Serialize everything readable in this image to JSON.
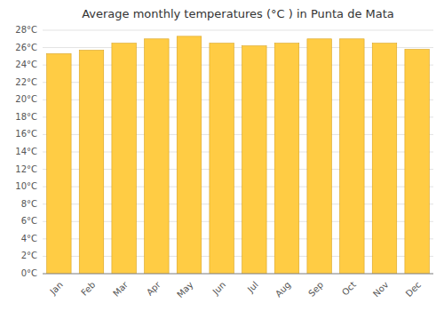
{
  "chart_data": {
    "type": "bar",
    "title": "Average monthly temperatures (°C ) in Punta de Mata",
    "categories": [
      "Jan",
      "Feb",
      "Mar",
      "Apr",
      "May",
      "Jun",
      "Jul",
      "Aug",
      "Sep",
      "Oct",
      "Nov",
      "Dec"
    ],
    "values": [
      25.3,
      25.7,
      26.5,
      27.0,
      27.3,
      26.5,
      26.2,
      26.5,
      27.0,
      27.0,
      26.5,
      25.8
    ],
    "color": "#FFCC44",
    "ylim": [
      0,
      28
    ],
    "yticks": [
      {
        "value": 0,
        "label": "0°C"
      },
      {
        "value": 2,
        "label": "2°C"
      },
      {
        "value": 4,
        "label": "4°C"
      },
      {
        "value": 6,
        "label": "6°C"
      },
      {
        "value": 8,
        "label": "8°C"
      },
      {
        "value": 10,
        "label": "10°C"
      },
      {
        "value": 12,
        "label": "12°C"
      },
      {
        "value": 14,
        "label": "14°C"
      },
      {
        "value": 16,
        "label": "16°C"
      },
      {
        "value": 18,
        "label": "18°C"
      },
      {
        "value": 20,
        "label": "20°C"
      },
      {
        "value": 22,
        "label": "22°C"
      },
      {
        "value": 24,
        "label": "24°C"
      },
      {
        "value": 26,
        "label": "26°C"
      },
      {
        "value": 28,
        "label": "28°C"
      }
    ],
    "grid": true
  }
}
